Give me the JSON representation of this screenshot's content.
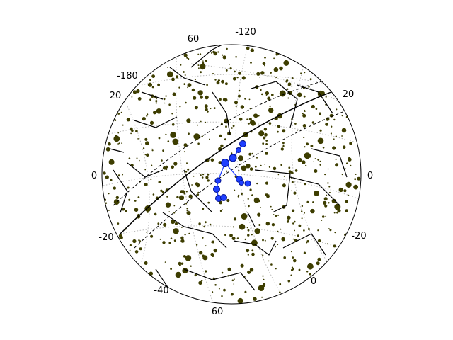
{
  "chart_data": {
    "type": "scatter",
    "projection": "orthographic sky globe",
    "title": "",
    "grid": true,
    "graticule_color": "#bbbbbb",
    "star_color": "#3d3d00",
    "highlight_color": "#1f3fff",
    "line_color": "#000000",
    "tick_labels": [
      "-120",
      "60",
      "-180",
      "20",
      "20",
      "0",
      "0",
      "-20",
      "-20",
      "-40",
      "0",
      "60"
    ],
    "series": [
      {
        "name": "",
        "role": "highlighted constellation",
        "x": [
          343,
          337,
          329,
          318,
          308,
          306,
          309,
          316,
          338,
          341,
          350
        ],
        "y": [
          203,
          212,
          223,
          230,
          255,
          267,
          280,
          279,
          253,
          258,
          259
        ]
      }
    ]
  }
}
